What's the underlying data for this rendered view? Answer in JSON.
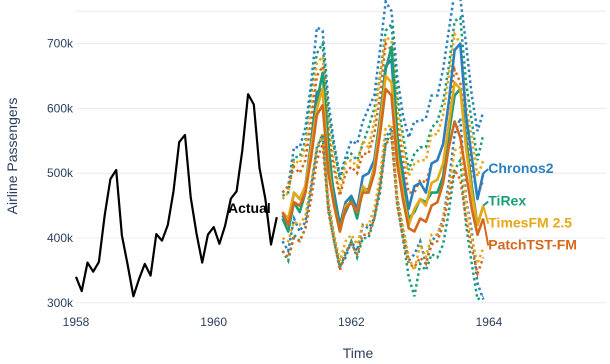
{
  "chart_data": {
    "type": "line",
    "xlabel": "Time",
    "ylabel": "Airline Passengers",
    "xlim": [
      1958.0,
      1965.7
    ],
    "ylim": [
      295000,
      755000
    ],
    "x_ticks": [
      1958,
      1960,
      1962,
      1964
    ],
    "x_tick_labels": [
      "1958",
      "1960",
      "1962",
      "1964"
    ],
    "y_ticks": [
      300000,
      400000,
      500000,
      600000,
      700000
    ],
    "y_tick_labels": [
      "300k",
      "400k",
      "500k",
      "600k",
      "700k"
    ],
    "grid": "horizontal",
    "legend": "inline labels at series ends",
    "colors": {
      "Actual": "#000000",
      "Chronos2": "#2a7fbf",
      "TiRex": "#1a9e77",
      "TimesFM 2.5": "#e6a817",
      "PatchTST-FM": "#d4691e",
      "grid": "#e8ecf2",
      "text": "#2a3f5f"
    },
    "actual": {
      "name": "Actual",
      "start": 1958.0,
      "step": 0.0833333,
      "values": [
        340000,
        318000,
        362000,
        348000,
        363000,
        435000,
        491000,
        505000,
        404000,
        359000,
        310000,
        337000,
        360000,
        342000,
        406000,
        396000,
        420000,
        472000,
        548000,
        559000,
        463000,
        407000,
        362000,
        405000,
        417000,
        391000,
        419000,
        461000,
        472000,
        535000,
        622000,
        606000,
        508000,
        461000,
        390000,
        432000
      ]
    },
    "forecast_start": 1961.0,
    "forecast_step": 0.0833333,
    "forecasts": [
      {
        "name": "Chronos2",
        "median": [
          435000,
          420000,
          470000,
          460000,
          480000,
          550000,
          625000,
          630000,
          520000,
          470000,
          420000,
          455000,
          465000,
          445000,
          495000,
          500000,
          520000,
          585000,
          665000,
          675000,
          555000,
          500000,
          445000,
          480000,
          485000,
          470000,
          515000,
          520000,
          545000,
          610000,
          690000,
          700000,
          590000,
          525000,
          460000,
          500000
        ],
        "upper": [
          470000,
          480000,
          540000,
          540000,
          570000,
          640000,
          725000,
          720000,
          610000,
          545000,
          495000,
          525000,
          550000,
          545000,
          580000,
          600000,
          620000,
          690000,
          765000,
          750000,
          650000,
          590000,
          555000,
          580000,
          580000,
          585000,
          620000,
          620000,
          660000,
          720000,
          780000,
          770000,
          700000,
          620000,
          565000,
          595000
        ],
        "lower": [
          395000,
          380000,
          430000,
          410000,
          425000,
          480000,
          540000,
          560000,
          450000,
          400000,
          355000,
          370000,
          395000,
          380000,
          420000,
          415000,
          430000,
          480000,
          555000,
          570000,
          460000,
          410000,
          365000,
          375000,
          395000,
          360000,
          395000,
          405000,
          430000,
          485000,
          560000,
          585000,
          460000,
          410000,
          330000,
          305000
        ]
      },
      {
        "name": "TiRex",
        "median": [
          430000,
          410000,
          455000,
          440000,
          470000,
          545000,
          610000,
          655000,
          545000,
          460000,
          420000,
          440000,
          460000,
          430000,
          475000,
          475000,
          510000,
          580000,
          660000,
          695000,
          560000,
          480000,
          430000,
          440000,
          460000,
          455000,
          470000,
          470000,
          495000,
          560000,
          620000,
          630000,
          555000,
          480000,
          420000,
          450000
        ],
        "upper": [
          465000,
          470000,
          525000,
          525000,
          550000,
          625000,
          685000,
          700000,
          590000,
          540000,
          490000,
          520000,
          530000,
          520000,
          545000,
          570000,
          600000,
          650000,
          720000,
          730000,
          620000,
          560000,
          505000,
          530000,
          540000,
          540000,
          570000,
          580000,
          610000,
          665000,
          735000,
          740000,
          640000,
          580000,
          520000,
          560000
        ],
        "lower": [
          380000,
          365000,
          405000,
          395000,
          415000,
          475000,
          535000,
          560000,
          445000,
          395000,
          355000,
          375000,
          395000,
          370000,
          400000,
          400000,
          430000,
          470000,
          545000,
          565000,
          455000,
          400000,
          340000,
          310000,
          360000,
          350000,
          375000,
          370000,
          390000,
          440000,
          505000,
          520000,
          420000,
          360000,
          305000,
          310000
        ]
      },
      {
        "name": "TimesFM 2.5",
        "median": [
          440000,
          430000,
          470000,
          460000,
          480000,
          540000,
          600000,
          630000,
          510000,
          450000,
          410000,
          450000,
          455000,
          440000,
          480000,
          470000,
          510000,
          575000,
          650000,
          640000,
          530000,
          470000,
          420000,
          445000,
          460000,
          450000,
          485000,
          490000,
          515000,
          575000,
          640000,
          630000,
          540000,
          470000,
          420000,
          450000
        ],
        "upper": [
          460000,
          470000,
          520000,
          515000,
          540000,
          600000,
          670000,
          680000,
          570000,
          520000,
          470000,
          515000,
          520000,
          510000,
          550000,
          540000,
          580000,
          650000,
          710000,
          705000,
          600000,
          540000,
          495000,
          515000,
          520000,
          520000,
          560000,
          560000,
          590000,
          650000,
          715000,
          700000,
          605000,
          555000,
          495000,
          520000
        ],
        "lower": [
          400000,
          395000,
          425000,
          420000,
          435000,
          485000,
          540000,
          560000,
          460000,
          405000,
          365000,
          395000,
          405000,
          390000,
          420000,
          420000,
          445000,
          495000,
          570000,
          575000,
          465000,
          420000,
          370000,
          350000,
          390000,
          370000,
          405000,
          405000,
          430000,
          475000,
          535000,
          540000,
          455000,
          400000,
          360000,
          385000
        ]
      },
      {
        "name": "PatchTST-FM",
        "median": [
          440000,
          420000,
          455000,
          450000,
          470000,
          525000,
          590000,
          605000,
          500000,
          450000,
          410000,
          445000,
          455000,
          440000,
          470000,
          470000,
          500000,
          560000,
          630000,
          620000,
          515000,
          460000,
          415000,
          410000,
          430000,
          425000,
          450000,
          455000,
          485000,
          540000,
          580000,
          555000,
          500000,
          445000,
          405000,
          430000
        ],
        "upper": [
          470000,
          480000,
          510000,
          500000,
          520000,
          580000,
          650000,
          665000,
          560000,
          505000,
          465000,
          500000,
          510000,
          500000,
          530000,
          530000,
          560000,
          620000,
          700000,
          690000,
          575000,
          520000,
          470000,
          470000,
          490000,
          485000,
          515000,
          520000,
          545000,
          605000,
          660000,
          640000,
          565000,
          510000,
          465000,
          490000
        ],
        "lower": [
          380000,
          370000,
          400000,
          395000,
          415000,
          460000,
          520000,
          545000,
          440000,
          395000,
          350000,
          380000,
          390000,
          375000,
          405000,
          405000,
          430000,
          480000,
          545000,
          555000,
          450000,
          400000,
          360000,
          355000,
          370000,
          360000,
          390000,
          395000,
          420000,
          465000,
          505000,
          490000,
          430000,
          385000,
          345000,
          370000
        ]
      }
    ],
    "labels": {
      "actual": "Actual",
      "Chronos2": "Chronos2",
      "TiRex": "TiRex",
      "TimesFM 2.5": "TimesFM 2.5",
      "PatchTST-FM": "PatchTST-FM"
    }
  }
}
